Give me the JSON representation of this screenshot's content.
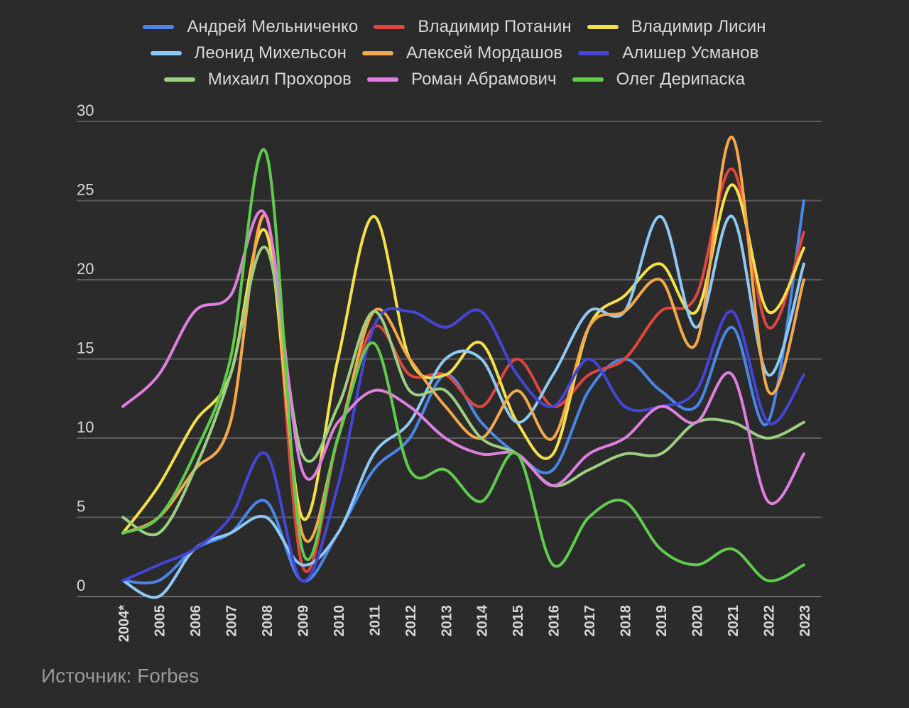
{
  "source": "Источник: Forbes",
  "chart_data": {
    "type": "line",
    "title": "",
    "xlabel": "",
    "ylabel": "",
    "ylim": [
      0,
      30
    ],
    "yticks": [
      0,
      5,
      10,
      15,
      20,
      25,
      30
    ],
    "grid": true,
    "legend_position": "top",
    "categories": [
      "2004*",
      "2005",
      "2006",
      "2007",
      "2008",
      "2009",
      "2010",
      "2011",
      "2012",
      "2013",
      "2014",
      "2015",
      "2016",
      "2017",
      "2018",
      "2019",
      "2020",
      "2021",
      "2022",
      "2023"
    ],
    "series": [
      {
        "name": "Андрей Мельниченко",
        "color": "#4a86e8",
        "values": [
          1,
          1,
          3,
          4,
          6,
          1,
          4,
          8,
          10,
          14,
          11,
          9,
          8,
          13,
          15,
          13,
          12,
          17,
          11,
          25
        ]
      },
      {
        "name": "Владимир Потанин",
        "color": "#e0463e",
        "values": [
          4,
          5,
          8,
          11,
          24,
          2,
          10,
          17,
          14,
          14,
          12,
          15,
          12,
          14,
          15,
          18,
          19,
          27,
          17,
          23
        ]
      },
      {
        "name": "Владимир Лисин",
        "color": "#f4e04a",
        "values": [
          4,
          7,
          11,
          14,
          23,
          5,
          15,
          24,
          15,
          14,
          16,
          11,
          9,
          17,
          19,
          21,
          18,
          26,
          18,
          22
        ]
      },
      {
        "name": "Леонид Михельсон",
        "color": "#8ec9f5",
        "values": [
          1,
          0,
          3,
          4,
          5,
          2,
          4,
          9,
          11,
          15,
          15,
          11,
          14,
          18,
          18,
          24,
          17,
          24,
          14,
          21
        ]
      },
      {
        "name": "Алексей Мордашов",
        "color": "#f3a94a",
        "values": [
          4,
          5,
          8,
          11,
          24,
          4,
          10,
          18,
          15,
          12,
          10,
          13,
          10,
          17,
          18,
          20,
          16,
          29,
          13,
          20
        ]
      },
      {
        "name": "Алишер Усманов",
        "color": "#4545d6",
        "values": [
          1,
          2,
          3,
          5,
          9,
          1,
          7,
          17,
          18,
          17,
          18,
          14,
          12,
          15,
          12,
          12,
          13,
          18,
          11,
          14
        ]
      },
      {
        "name": "Михаил Прохоров",
        "color": "#9ccf82",
        "values": [
          5,
          4,
          8,
          14,
          22,
          9,
          12,
          18,
          13,
          13,
          10,
          9,
          7,
          8,
          9,
          9,
          11,
          11,
          10,
          11
        ]
      },
      {
        "name": "Роман Абрамович",
        "color": "#df7fe0",
        "values": [
          12,
          14,
          18,
          19,
          24,
          8,
          11,
          13,
          12,
          10,
          9,
          9,
          7,
          9,
          10,
          12,
          11,
          14,
          6,
          9
        ]
      },
      {
        "name": "Олег Дерипаска",
        "color": "#5fcc4e",
        "values": [
          4,
          5,
          9,
          15,
          28,
          3,
          10,
          16,
          8,
          8,
          6,
          9,
          2,
          5,
          6,
          3,
          2,
          3,
          1,
          2
        ]
      }
    ]
  }
}
